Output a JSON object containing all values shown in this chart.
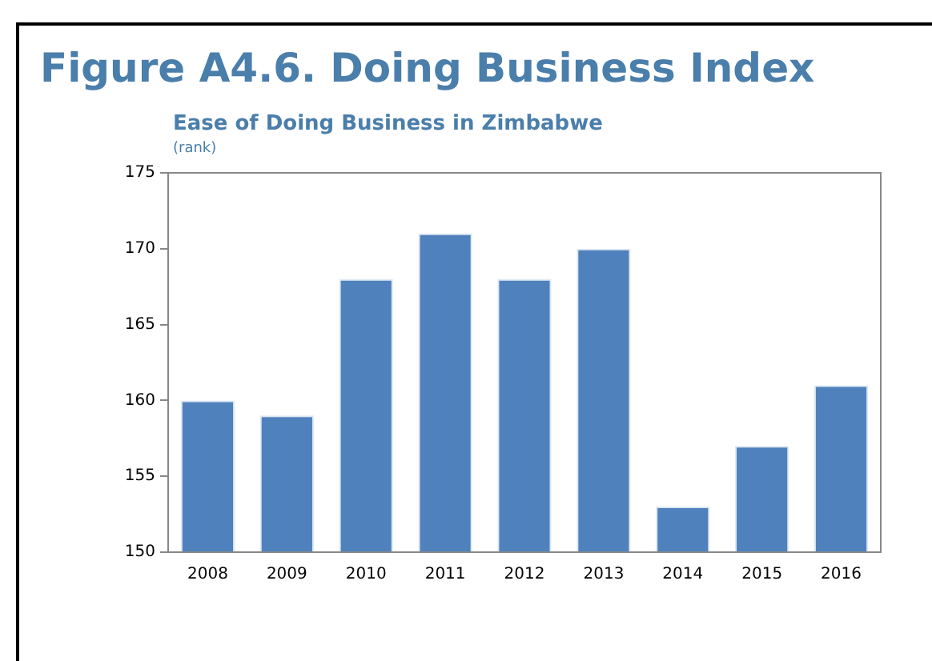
{
  "chart_data": {
    "type": "bar",
    "title": "Figure A4.6. Doing Business Index",
    "subtitle": "Ease of Doing Business in Zimbabwe",
    "ylabel": "(rank)",
    "categories": [
      "2008",
      "2009",
      "2010",
      "2011",
      "2012",
      "2013",
      "2014",
      "2015",
      "2016"
    ],
    "values": [
      160,
      159,
      168,
      171,
      168,
      170,
      153,
      157,
      161
    ],
    "color": "#4f81bd",
    "ylim": [
      150,
      175
    ],
    "yticks": [
      150,
      155,
      160,
      165,
      170,
      175
    ],
    "grid": false,
    "legend": false
  }
}
